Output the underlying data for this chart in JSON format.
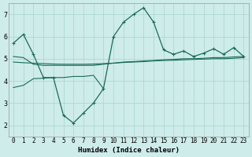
{
  "xlabel": "Humidex (Indice chaleur)",
  "bg_color": "#ceecea",
  "grid_color": "#a8d4ce",
  "line_color": "#1a6b5a",
  "xlim": [
    -0.5,
    23.5
  ],
  "ylim": [
    1.5,
    7.5
  ],
  "yticks": [
    2,
    3,
    4,
    5,
    6,
    7
  ],
  "xticks": [
    0,
    1,
    2,
    3,
    4,
    5,
    6,
    7,
    8,
    9,
    10,
    11,
    12,
    13,
    14,
    15,
    16,
    17,
    18,
    19,
    20,
    21,
    22,
    23
  ],
  "main_x": [
    0,
    1,
    2,
    3,
    4,
    5,
    6,
    7,
    8,
    9,
    10,
    11,
    12,
    13,
    14,
    15,
    16,
    17,
    18,
    19,
    20,
    21,
    22,
    23
  ],
  "main_y": [
    5.7,
    6.1,
    5.2,
    4.15,
    4.15,
    2.45,
    2.1,
    2.55,
    3.0,
    3.65,
    6.0,
    6.65,
    7.0,
    7.3,
    6.65,
    5.4,
    5.2,
    5.35,
    5.1,
    5.25,
    5.45,
    5.2,
    5.5,
    5.1
  ],
  "trend1_x": [
    0,
    1,
    2,
    3,
    4,
    5,
    6,
    7,
    8,
    9,
    10,
    11,
    12,
    13,
    14,
    15,
    16,
    17,
    18,
    19,
    20,
    21,
    22,
    23
  ],
  "trend1_y": [
    5.1,
    5.05,
    4.75,
    4.7,
    4.7,
    4.7,
    4.7,
    4.7,
    4.7,
    4.75,
    4.8,
    4.85,
    4.87,
    4.9,
    4.92,
    4.95,
    4.97,
    5.0,
    5.0,
    5.02,
    5.05,
    5.05,
    5.08,
    5.1
  ],
  "trend2_x": [
    0,
    1,
    2,
    3,
    4,
    5,
    6,
    7,
    8,
    9,
    10,
    11,
    12,
    13,
    14,
    15,
    16,
    17,
    18,
    19,
    20,
    21,
    22,
    23
  ],
  "trend2_y": [
    4.85,
    4.82,
    4.8,
    4.78,
    4.76,
    4.75,
    4.75,
    4.75,
    4.76,
    4.78,
    4.8,
    4.83,
    4.85,
    4.87,
    4.9,
    4.92,
    4.93,
    4.95,
    4.97,
    4.98,
    5.0,
    5.0,
    5.02,
    5.05
  ],
  "trend3_x": [
    0,
    1,
    2,
    3,
    4,
    5,
    6,
    7,
    8,
    9
  ],
  "trend3_y": [
    3.7,
    3.8,
    4.1,
    4.12,
    4.15,
    4.15,
    4.2,
    4.2,
    4.25,
    3.65
  ]
}
